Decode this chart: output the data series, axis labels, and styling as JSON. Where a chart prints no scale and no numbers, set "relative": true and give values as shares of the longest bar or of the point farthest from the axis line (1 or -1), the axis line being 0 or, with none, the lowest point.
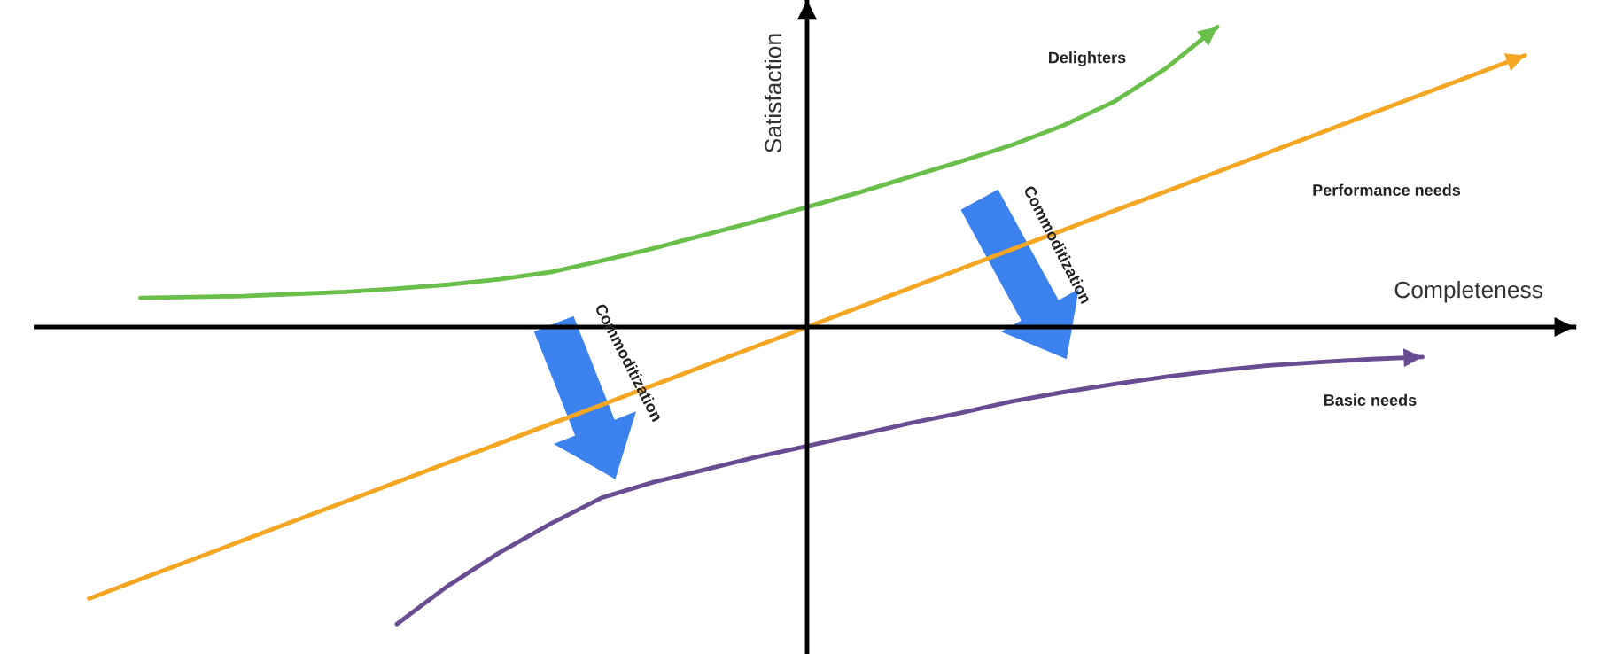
{
  "chart_data": {
    "type": "line",
    "relative": true,
    "xlabel": "Completeness",
    "ylabel": "Satisfaction",
    "legend": false,
    "categories": [
      null,
      null,
      null,
      null,
      null,
      null,
      null,
      null,
      null,
      null,
      null,
      null,
      null,
      null,
      null,
      null,
      null,
      null,
      null,
      null,
      null,
      null,
      null,
      null,
      null,
      null,
      null,
      null,
      null
    ],
    "series": [
      {
        "name": "Delighters",
        "color": "#6abf4b",
        "values": [
          null,
          0.097,
          0.1,
          0.103,
          0.11,
          0.117,
          0.128,
          0.141,
          0.159,
          0.183,
          0.221,
          0.262,
          0.307,
          0.352,
          0.4,
          0.448,
          0.5,
          0.552,
          0.607,
          0.672,
          0.752,
          0.862,
          1.0,
          null,
          null,
          null,
          null,
          null,
          null
        ]
      },
      {
        "name": "Performance needs",
        "color": "#f5a623",
        "values": [
          -0.905,
          -0.84,
          -0.776,
          -0.711,
          -0.646,
          -0.582,
          -0.517,
          -0.452,
          -0.388,
          -0.323,
          -0.259,
          -0.194,
          -0.129,
          -0.065,
          0,
          0.065,
          0.129,
          0.194,
          0.259,
          0.323,
          0.388,
          0.452,
          0.517,
          0.582,
          0.646,
          0.711,
          0.776,
          0.84,
          0.905
        ]
      },
      {
        "name": "Basic needs",
        "color": "#6a4c93",
        "values": [
          null,
          null,
          null,
          null,
          null,
          null,
          -0.99,
          -0.862,
          -0.752,
          -0.655,
          -0.569,
          -0.517,
          -0.476,
          -0.434,
          -0.397,
          -0.359,
          -0.321,
          -0.286,
          -0.248,
          -0.217,
          -0.19,
          -0.166,
          -0.145,
          -0.128,
          -0.117,
          -0.107,
          -0.1,
          null,
          null
        ]
      }
    ],
    "annotations": [
      "Commoditization",
      "Commoditization"
    ]
  }
}
